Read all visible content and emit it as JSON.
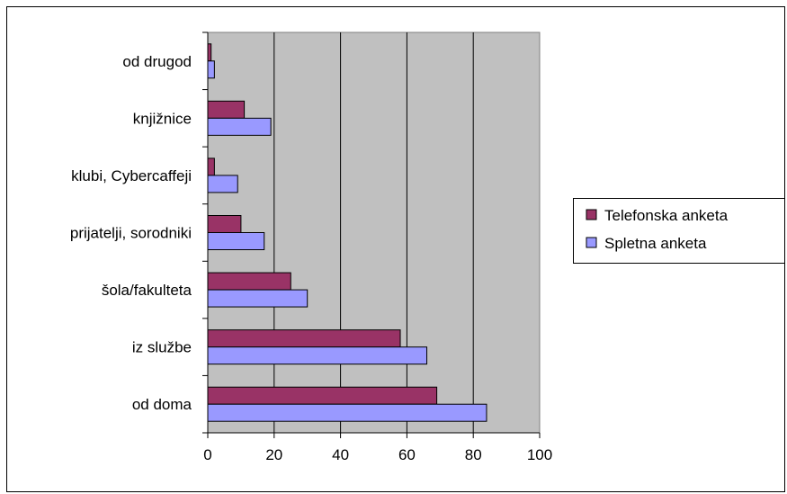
{
  "chart_data": {
    "type": "bar",
    "orientation": "horizontal",
    "categories": [
      "od doma",
      "iz službe",
      "šola/fakulteta",
      "prijatelji, sorodniki",
      "klubi, Cybercaffeji",
      "knjižnice",
      "od drugod"
    ],
    "series": [
      {
        "name": "Telefonska anketa",
        "color": "#993366",
        "values": [
          69,
          58,
          25,
          10,
          2,
          11,
          1
        ]
      },
      {
        "name": "Spletna anketa",
        "color": "#9999ff",
        "values": [
          84,
          66,
          30,
          17,
          9,
          19,
          2
        ]
      }
    ],
    "xlim": [
      0,
      100
    ],
    "xticks": [
      "0",
      "20",
      "40",
      "60",
      "80",
      "100"
    ],
    "plot_background": "#c0c0c0",
    "grid": true,
    "legend_position": "right"
  }
}
